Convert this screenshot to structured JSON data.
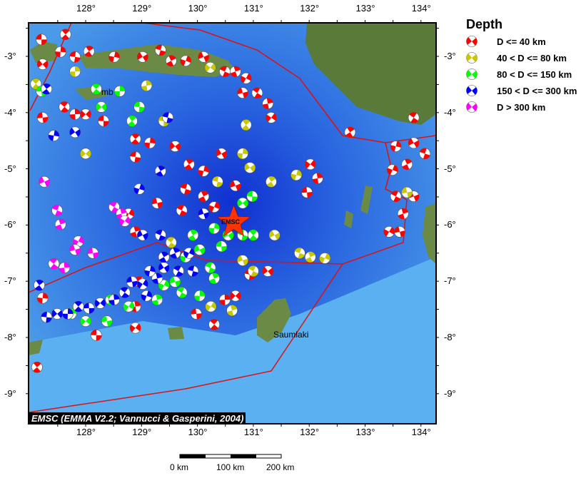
{
  "legend": {
    "title": "Depth",
    "items": [
      {
        "label": "D <= 40 km",
        "color": "#ff0000"
      },
      {
        "label": "40 < D <= 80 km",
        "color": "#c8c800"
      },
      {
        "label": "80 < D <= 150 km",
        "color": "#00ff00"
      },
      {
        "label": "150 < D <= 300 km",
        "color": "#0000ff"
      },
      {
        "label": "D > 300 km",
        "color": "#ff00ff"
      }
    ]
  },
  "axes": {
    "lon_ticks": [
      "128°",
      "129°",
      "130°",
      "131°",
      "132°",
      "133°",
      "134°"
    ],
    "lat_ticks": [
      "-3°",
      "-4°",
      "-5°",
      "-6°",
      "-7°",
      "-8°",
      "-9°"
    ]
  },
  "credit": "EMSC (EMMA V2.2; Vannucci & Gasperini, 2004)",
  "scale_bar": {
    "labels": [
      "0 km",
      "100 km",
      "200 km"
    ]
  },
  "places": {
    "ambon": "mb",
    "saumlaki": "Saumlaki",
    "epicenter": "EMSC"
  },
  "colors": {
    "plate_boundary": "#dd1111",
    "epicenter_star": "#ff3300"
  },
  "epicenter": {
    "lon": 130.65,
    "lat": -5.95
  },
  "events": {
    "red": [
      [
        127.21,
        -2.7
      ],
      [
        127.64,
        -2.61
      ],
      [
        127.55,
        -2.92
      ],
      [
        127.23,
        -3.14
      ],
      [
        127.81,
        -3.01
      ],
      [
        128.06,
        -2.91
      ],
      [
        128.51,
        -3.01
      ],
      [
        129.02,
        -3.01
      ],
      [
        129.34,
        -2.89
      ],
      [
        129.53,
        -3.08
      ],
      [
        129.79,
        -3.08
      ],
      [
        130.11,
        -3.01
      ],
      [
        130.49,
        -3.27
      ],
      [
        130.68,
        -3.27
      ],
      [
        130.87,
        -3.39
      ],
      [
        130.81,
        -3.65
      ],
      [
        131.07,
        -3.65
      ],
      [
        131.26,
        -3.84
      ],
      [
        131.32,
        -4.09
      ],
      [
        127.23,
        -4.09
      ],
      [
        127.62,
        -3.9
      ],
      [
        127.81,
        -4.03
      ],
      [
        128.0,
        -4.03
      ],
      [
        128.32,
        -4.15
      ],
      [
        128.89,
        -4.47
      ],
      [
        129.15,
        -4.54
      ],
      [
        129.6,
        -4.6
      ],
      [
        128.89,
        -4.79
      ],
      [
        129.85,
        -4.92
      ],
      [
        130.11,
        -5.04
      ],
      [
        130.43,
        -4.73
      ],
      [
        129.79,
        -5.36
      ],
      [
        130.11,
        -5.49
      ],
      [
        130.3,
        -5.68
      ],
      [
        130.68,
        -5.3
      ],
      [
        129.72,
        -5.74
      ],
      [
        128.89,
        -6.12
      ],
      [
        128.77,
        -5.8
      ],
      [
        129.28,
        -5.61
      ],
      [
        128.96,
        -7.01
      ],
      [
        128.89,
        -7.45
      ],
      [
        128.89,
        -7.83
      ],
      [
        129.98,
        -7.58
      ],
      [
        130.3,
        -7.77
      ],
      [
        130.49,
        -7.33
      ],
      [
        130.68,
        -7.26
      ],
      [
        128.19,
        -7.96
      ],
      [
        127.13,
        -8.53
      ],
      [
        127.23,
        -7.3
      ],
      [
        131.26,
        -6.82
      ],
      [
        130.94,
        -6.88
      ],
      [
        132.73,
        -4.35
      ],
      [
        133.55,
        -4.6
      ],
      [
        133.87,
        -4.54
      ],
      [
        134.07,
        -4.73
      ],
      [
        133.75,
        -4.92
      ],
      [
        133.49,
        -5.02
      ],
      [
        133.87,
        -5.49
      ],
      [
        133.55,
        -5.49
      ],
      [
        133.68,
        -5.8
      ],
      [
        133.43,
        -6.12
      ],
      [
        133.62,
        -6.12
      ],
      [
        133.87,
        -4.09
      ],
      [
        132.15,
        -5.17
      ],
      [
        132.02,
        -4.92
      ],
      [
        131.96,
        -5.42
      ]
    ],
    "yellow": [
      [
        127.11,
        -3.49
      ],
      [
        127.81,
        -3.27
      ],
      [
        128.0,
        -4.73
      ],
      [
        129.4,
        -4.15
      ],
      [
        130.87,
        -4.22
      ],
      [
        130.81,
        -4.73
      ],
      [
        130.94,
        -4.98
      ],
      [
        130.36,
        -5.23
      ],
      [
        131.32,
        -5.23
      ],
      [
        131.77,
        -5.11
      ],
      [
        131.38,
        -6.18
      ],
      [
        131.83,
        -6.5
      ],
      [
        132.02,
        -6.57
      ],
      [
        132.28,
        -6.59
      ],
      [
        130.81,
        -6.63
      ],
      [
        131.0,
        -6.82
      ],
      [
        130.62,
        -7.52
      ],
      [
        130.24,
        -7.45
      ],
      [
        133.75,
        -5.42
      ],
      [
        129.53,
        -6.31
      ],
      [
        129.09,
        -3.52
      ],
      [
        130.23,
        -3.2
      ]
    ],
    "green": [
      [
        127.21,
        -3.62
      ],
      [
        128.19,
        -3.58
      ],
      [
        128.61,
        -3.62
      ],
      [
        128.28,
        -3.9
      ],
      [
        128.96,
        -3.9
      ],
      [
        128.83,
        -4.15
      ],
      [
        130.3,
        -6.06
      ],
      [
        130.55,
        -6.18
      ],
      [
        130.81,
        -6.18
      ],
      [
        129.92,
        -6.18
      ],
      [
        129.79,
        -6.57
      ],
      [
        130.04,
        -6.44
      ],
      [
        130.23,
        -6.76
      ],
      [
        130.3,
        -6.95
      ],
      [
        129.4,
        -7.07
      ],
      [
        129.6,
        -7.01
      ],
      [
        129.72,
        -7.2
      ],
      [
        129.28,
        -7.33
      ],
      [
        128.77,
        -7.45
      ],
      [
        128.38,
        -7.71
      ],
      [
        128.45,
        -7.33
      ],
      [
        127.74,
        -7.58
      ],
      [
        128.0,
        -7.71
      ],
      [
        130.43,
        -6.38
      ],
      [
        131.0,
        -6.18
      ],
      [
        130.04,
        -7.26
      ],
      [
        130.81,
        -5.61
      ],
      [
        130.98,
        -5.49
      ]
    ],
    "blue": [
      [
        127.3,
        -3.58
      ],
      [
        127.43,
        -4.41
      ],
      [
        127.81,
        -4.35
      ],
      [
        129.47,
        -4.09
      ],
      [
        129.34,
        -5.04
      ],
      [
        128.96,
        -5.36
      ],
      [
        129.02,
        -6.18
      ],
      [
        129.34,
        -6.18
      ],
      [
        129.6,
        -6.5
      ],
      [
        129.85,
        -6.5
      ],
      [
        130.11,
        -5.8
      ],
      [
        129.66,
        -6.82
      ],
      [
        129.28,
        -6.95
      ],
      [
        129.02,
        -7.05
      ],
      [
        128.83,
        -7.01
      ],
      [
        128.7,
        -7.2
      ],
      [
        128.51,
        -7.33
      ],
      [
        128.26,
        -7.39
      ],
      [
        128.06,
        -7.48
      ],
      [
        127.87,
        -7.45
      ],
      [
        127.68,
        -7.58
      ],
      [
        127.49,
        -7.58
      ],
      [
        127.3,
        -7.64
      ],
      [
        127.17,
        -7.07
      ],
      [
        129.15,
        -6.82
      ],
      [
        129.4,
        -6.76
      ],
      [
        129.92,
        -6.82
      ],
      [
        129.4,
        -6.57
      ],
      [
        129.09,
        -7.26
      ]
    ],
    "magenta": [
      [
        127.26,
        -5.23
      ],
      [
        127.49,
        -5.74
      ],
      [
        127.55,
        -5.99
      ],
      [
        127.87,
        -6.29
      ],
      [
        127.81,
        -6.44
      ],
      [
        128.51,
        -5.68
      ],
      [
        128.64,
        -5.8
      ],
      [
        128.7,
        -5.93
      ],
      [
        128.13,
        -6.5
      ],
      [
        127.43,
        -6.69
      ],
      [
        127.62,
        -6.76
      ]
    ]
  }
}
